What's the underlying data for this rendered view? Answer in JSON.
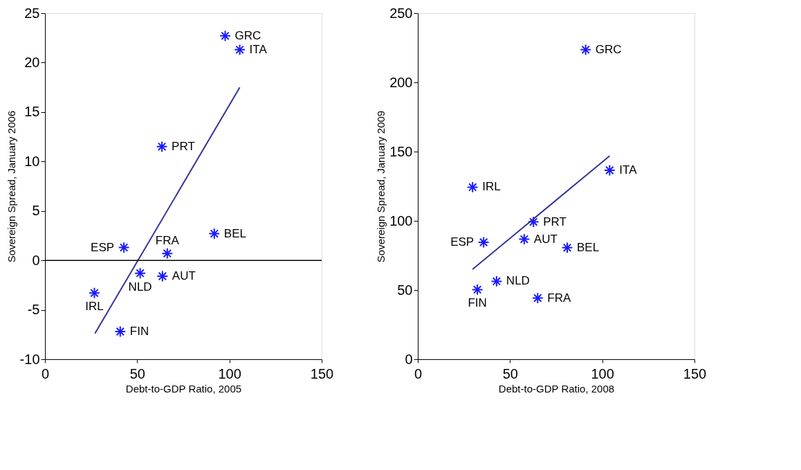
{
  "chart_data": [
    {
      "type": "scatter",
      "xlabel": "Debt-to-GDP Ratio, 2005",
      "ylabel": "Sovereign Spread, January 2006",
      "xlim": [
        0,
        150
      ],
      "xticks": [
        0,
        50,
        100,
        150
      ],
      "ylim": [
        -10,
        25
      ],
      "yticks": [
        -10,
        -5,
        0,
        5,
        10,
        15,
        20,
        25
      ],
      "grid": false,
      "marker": "cross",
      "series": [
        {
          "color": "#1a1aff",
          "x": [
            97.7,
            105.6,
            63.4,
            42.8,
            66.3,
            91.8,
            51.6,
            63.7,
            26.8,
            40.8
          ],
          "values": [
            22.7,
            21.3,
            11.5,
            1.3,
            0.7,
            2.7,
            -1.3,
            -1.6,
            -3.3,
            -7.2
          ]
        },
        {
          "type": "line",
          "marker": "none",
          "color": "#333399",
          "x": [
            27.1,
            105.6
          ],
          "values": [
            -7.4,
            17.5
          ]
        }
      ],
      "ref_lines": [
        {
          "axis": "y",
          "value": 0,
          "color": "#000000"
        }
      ],
      "annotations": [
        {
          "text": "GRC",
          "x": 97.7,
          "y": 22.7
        },
        {
          "text": "ITA",
          "x": 105.6,
          "y": 21.3
        },
        {
          "text": "PRT",
          "x": 63.4,
          "y": 11.5
        },
        {
          "text": "ESP",
          "x": 42.8,
          "y": 1.3
        },
        {
          "text": "FRA",
          "x": 66.3,
          "y": 0.7
        },
        {
          "text": "BEL",
          "x": 91.8,
          "y": 2.7
        },
        {
          "text": "NLD",
          "x": 51.6,
          "y": -1.3
        },
        {
          "text": "AUT",
          "x": 63.7,
          "y": -1.6
        },
        {
          "text": "IRL",
          "x": 26.8,
          "y": -3.3
        },
        {
          "text": "FIN",
          "x": 40.8,
          "y": -7.2
        }
      ]
    },
    {
      "type": "scatter",
      "xlabel": "Debt-to-GDP Ratio, 2008",
      "ylabel": "Sovereign Spread, January 2009",
      "xlim": [
        0,
        150
      ],
      "xticks": [
        0,
        50,
        100,
        150
      ],
      "ylim": [
        0,
        250
      ],
      "yticks": [
        0,
        50,
        100,
        150,
        200,
        250
      ],
      "grid": false,
      "marker": "cross",
      "series": [
        {
          "color": "#1a1aff",
          "x": [
            91,
            104,
            29.7,
            62.7,
            35.7,
            57.7,
            81,
            42.7,
            32.3,
            65
          ],
          "values": [
            223.6,
            136.5,
            124.3,
            99.2,
            84.5,
            86.7,
            80.6,
            56.3,
            50.3,
            44.2
          ]
        },
        {
          "type": "line",
          "marker": "none",
          "color": "#333399",
          "x": [
            29.7,
            104
          ],
          "values": [
            65,
            146.9
          ]
        }
      ],
      "annotations": [
        {
          "text": "GRC",
          "x": 91,
          "y": 223.6
        },
        {
          "text": "ITA",
          "x": 104,
          "y": 136.5
        },
        {
          "text": "IRL",
          "x": 29.7,
          "y": 124.3
        },
        {
          "text": "PRT",
          "x": 62.7,
          "y": 99.2
        },
        {
          "text": "ESP",
          "x": 35.7,
          "y": 84.5
        },
        {
          "text": "AUT",
          "x": 57.7,
          "y": 86.7
        },
        {
          "text": "BEL",
          "x": 81,
          "y": 80.6
        },
        {
          "text": "NLD",
          "x": 42.7,
          "y": 56.3
        },
        {
          "text": "FIN",
          "x": 32.3,
          "y": 50.3
        },
        {
          "text": "FRA",
          "x": 65,
          "y": 44.2
        }
      ]
    }
  ]
}
